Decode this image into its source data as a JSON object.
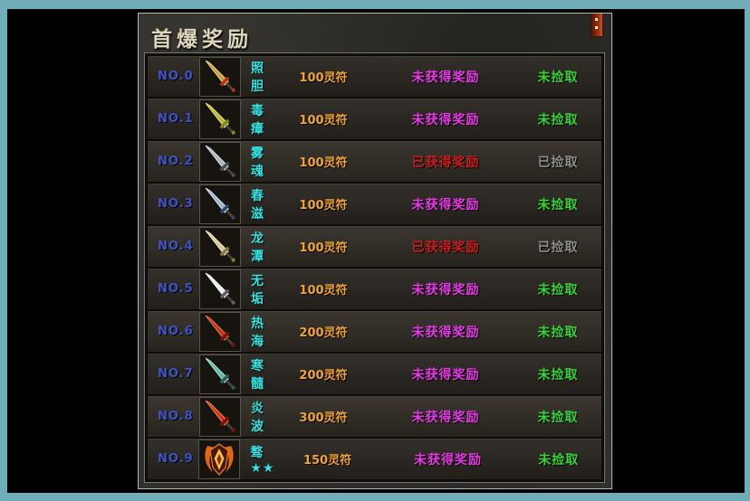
{
  "window": {
    "title": "首爆奖励",
    "close_icon": "close"
  },
  "colors": {
    "frame": "#6fadb9",
    "row_number": "#4054c8",
    "item_name": "#35e4e4",
    "amount": "#f0a43c",
    "status_pending": "#e53ce5",
    "status_done": "#ce1d1d",
    "pick_pending": "#38d438",
    "pick_done": "#8f8f8f",
    "title_text": "#ddd5ba"
  },
  "table": {
    "rows": [
      {
        "no": "NO.0",
        "name": "照胆",
        "amount": "100灵符",
        "status": "未获得奖励",
        "status_state": "pending",
        "pick": "未捡取",
        "pick_state": "pending",
        "icon": {
          "kind": "sword",
          "c1": "#c89a3a",
          "c2": "#f2df9a",
          "c3": "#b23318"
        }
      },
      {
        "no": "NO.1",
        "name": "毒瘴",
        "amount": "100灵符",
        "status": "未获得奖励",
        "status_state": "pending",
        "pick": "未捡取",
        "pick_state": "pending",
        "icon": {
          "kind": "sword",
          "c1": "#c2b13a",
          "c2": "#eee98e",
          "c3": "#7d8a2c"
        }
      },
      {
        "no": "NO.2",
        "name": "雾魂",
        "amount": "100灵符",
        "status": "已获得奖励",
        "status_state": "done",
        "pick": "已捡取",
        "pick_state": "done",
        "icon": {
          "kind": "sword",
          "c1": "#aab4be",
          "c2": "#e4ecf2",
          "c3": "#4a4e55"
        }
      },
      {
        "no": "NO.3",
        "name": "春滋",
        "amount": "100灵符",
        "status": "未获得奖励",
        "status_state": "pending",
        "pick": "未捡取",
        "pick_state": "pending",
        "icon": {
          "kind": "sword",
          "c1": "#9fb2cc",
          "c2": "#dde8f4",
          "c3": "#32476b"
        }
      },
      {
        "no": "NO.4",
        "name": "龙潭",
        "amount": "100灵符",
        "status": "已获得奖励",
        "status_state": "done",
        "pick": "已捡取",
        "pick_state": "done",
        "icon": {
          "kind": "sword",
          "c1": "#d6cb98",
          "c2": "#f3edc8",
          "c3": "#8a7a42"
        }
      },
      {
        "no": "NO.5",
        "name": "无垢",
        "amount": "100灵符",
        "status": "未获得奖励",
        "status_state": "pending",
        "pick": "未捡取",
        "pick_state": "pending",
        "icon": {
          "kind": "sword",
          "c1": "#e6ecf0",
          "c2": "#ffffff",
          "c3": "#5a6066"
        }
      },
      {
        "no": "NO.6",
        "name": "热海",
        "amount": "200灵符",
        "status": "未获得奖励",
        "status_state": "pending",
        "pick": "未捡取",
        "pick_state": "pending",
        "icon": {
          "kind": "sword",
          "c1": "#c23420",
          "c2": "#f07a4a",
          "c3": "#6e1408"
        }
      },
      {
        "no": "NO.7",
        "name": "寒髓",
        "amount": "200灵符",
        "status": "未获得奖励",
        "status_state": "pending",
        "pick": "未捡取",
        "pick_state": "pending",
        "icon": {
          "kind": "sword",
          "c1": "#5cb8a8",
          "c2": "#bdeee2",
          "c3": "#2a5e55"
        }
      },
      {
        "no": "NO.8",
        "name": "炎波",
        "amount": "300灵符",
        "status": "未获得奖励",
        "status_state": "pending",
        "pick": "未捡取",
        "pick_state": "pending",
        "icon": {
          "kind": "sword",
          "c1": "#d0321c",
          "c2": "#f59048",
          "c3": "#7a1206"
        }
      },
      {
        "no": "NO.9",
        "name": "骜★★",
        "amount": "150灵符",
        "status": "未获得奖励",
        "status_state": "pending",
        "pick": "未捡取",
        "pick_state": "pending",
        "icon": {
          "kind": "emblem",
          "c1": "#e3651a",
          "c2": "#f6c050",
          "c3": "#4a1506"
        }
      }
    ]
  }
}
